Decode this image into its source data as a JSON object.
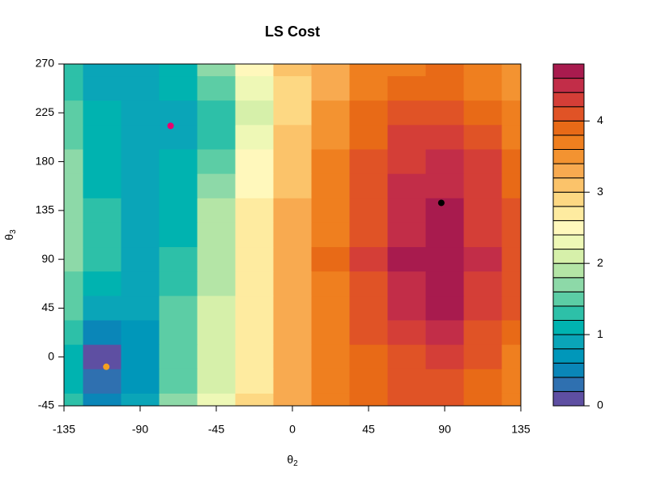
{
  "chart_data": {
    "type": "filled-contour",
    "title": "LS Cost",
    "x_label": "θ",
    "x_label_sub": "2",
    "y_label": "θ",
    "y_label_sub": "3",
    "xlim": [
      -135,
      135
    ],
    "ylim": [
      -45,
      270
    ],
    "xticks": [
      -135,
      -90,
      -45,
      0,
      45,
      90,
      135
    ],
    "yticks": [
      -45,
      0,
      45,
      90,
      135,
      180,
      225,
      270
    ],
    "x": [
      -135,
      -112.5,
      -90,
      -67.5,
      -45,
      -22.5,
      0,
      22.5,
      45,
      67.5,
      90,
      112.5,
      135
    ],
    "y": [
      270,
      247.5,
      225,
      202.5,
      180,
      157.5,
      135,
      112.5,
      90,
      67.5,
      45,
      22.5,
      0,
      -22.5,
      -45
    ],
    "z": [
      [
        1.3,
        0.9,
        0.8,
        1.1,
        1.7,
        2.5,
        3.0,
        3.3,
        3.6,
        3.7,
        3.8,
        3.6,
        3.4
      ],
      [
        1.35,
        0.95,
        0.85,
        1.0,
        1.45,
        2.3,
        2.95,
        3.35,
        3.7,
        3.9,
        3.95,
        3.75,
        3.5
      ],
      [
        1.4,
        1.0,
        0.9,
        0.95,
        1.2,
        2.1,
        2.9,
        3.4,
        3.8,
        4.1,
        4.1,
        3.9,
        3.6
      ],
      [
        1.5,
        1.05,
        0.9,
        0.95,
        1.35,
        2.25,
        3.0,
        3.5,
        3.9,
        4.2,
        4.25,
        4.05,
        3.7
      ],
      [
        1.6,
        1.1,
        0.9,
        1.0,
        1.5,
        2.4,
        3.1,
        3.6,
        4.0,
        4.3,
        4.4,
        4.2,
        3.8
      ],
      [
        1.65,
        1.15,
        0.92,
        1.05,
        1.65,
        2.5,
        3.15,
        3.65,
        4.05,
        4.4,
        4.5,
        4.25,
        3.9
      ],
      [
        1.7,
        1.2,
        0.95,
        1.1,
        1.8,
        2.6,
        3.2,
        3.7,
        4.1,
        4.5,
        4.6,
        4.3,
        4.0
      ],
      [
        1.65,
        1.2,
        0.92,
        1.15,
        1.85,
        2.65,
        3.25,
        3.75,
        4.15,
        4.55,
        4.68,
        4.35,
        4.05
      ],
      [
        1.6,
        1.2,
        0.9,
        1.2,
        1.9,
        2.7,
        3.3,
        3.8,
        4.2,
        4.6,
        4.7,
        4.4,
        4.1
      ],
      [
        1.5,
        1.0,
        0.85,
        1.3,
        1.95,
        2.7,
        3.25,
        3.75,
        4.15,
        4.55,
        4.65,
        4.35,
        4.05
      ],
      [
        1.4,
        0.8,
        0.8,
        1.4,
        2.0,
        2.7,
        3.2,
        3.7,
        4.1,
        4.5,
        4.6,
        4.3,
        4.0
      ],
      [
        1.2,
        0.45,
        0.75,
        1.45,
        2.05,
        2.7,
        3.2,
        3.65,
        4.0,
        4.3,
        4.4,
        4.15,
        3.85
      ],
      [
        1.0,
        0.15,
        0.7,
        1.5,
        2.1,
        2.7,
        3.2,
        3.6,
        3.9,
        4.1,
        4.2,
        4.0,
        3.7
      ],
      [
        1.1,
        0.3,
        0.75,
        1.55,
        2.15,
        2.75,
        3.25,
        3.6,
        3.85,
        4.05,
        4.1,
        3.95,
        3.65
      ],
      [
        1.2,
        0.4,
        0.8,
        1.6,
        2.2,
        2.8,
        3.3,
        3.6,
        3.8,
        4.0,
        4.0,
        3.9,
        3.6
      ]
    ],
    "levels": [
      0,
      0.2,
      0.4,
      0.6,
      0.8,
      1,
      1.2,
      1.4,
      1.6,
      1.8,
      2,
      2.2,
      2.4,
      2.6,
      2.8,
      3,
      3.2,
      3.4,
      3.6,
      3.8,
      4,
      4.2,
      4.4,
      4.6,
      4.8
    ],
    "colors": [
      "#5E4FA2",
      "#2F70B0",
      "#0A86B8",
      "#0097BA",
      "#0AA5B8",
      "#00B3B0",
      "#2DC0A8",
      "#5CCDA5",
      "#8DD9A8",
      "#B4E5A6",
      "#D6F0AA",
      "#EEF8B6",
      "#FFF8BC",
      "#FEEBA0",
      "#FDD883",
      "#FBC36A",
      "#F8AA50",
      "#F39331",
      "#EF7F1F",
      "#E86A17",
      "#E05326",
      "#D43E37",
      "#C22D48",
      "#A81B4E"
    ],
    "colorbar_ticks": [
      0,
      1,
      2,
      3,
      4
    ],
    "points": {
      "x": [
        88,
        -72,
        -110
      ],
      "y": [
        142,
        213,
        -9
      ],
      "colors": [
        "#000000",
        "#E8006E",
        "#F5A020"
      ]
    }
  }
}
